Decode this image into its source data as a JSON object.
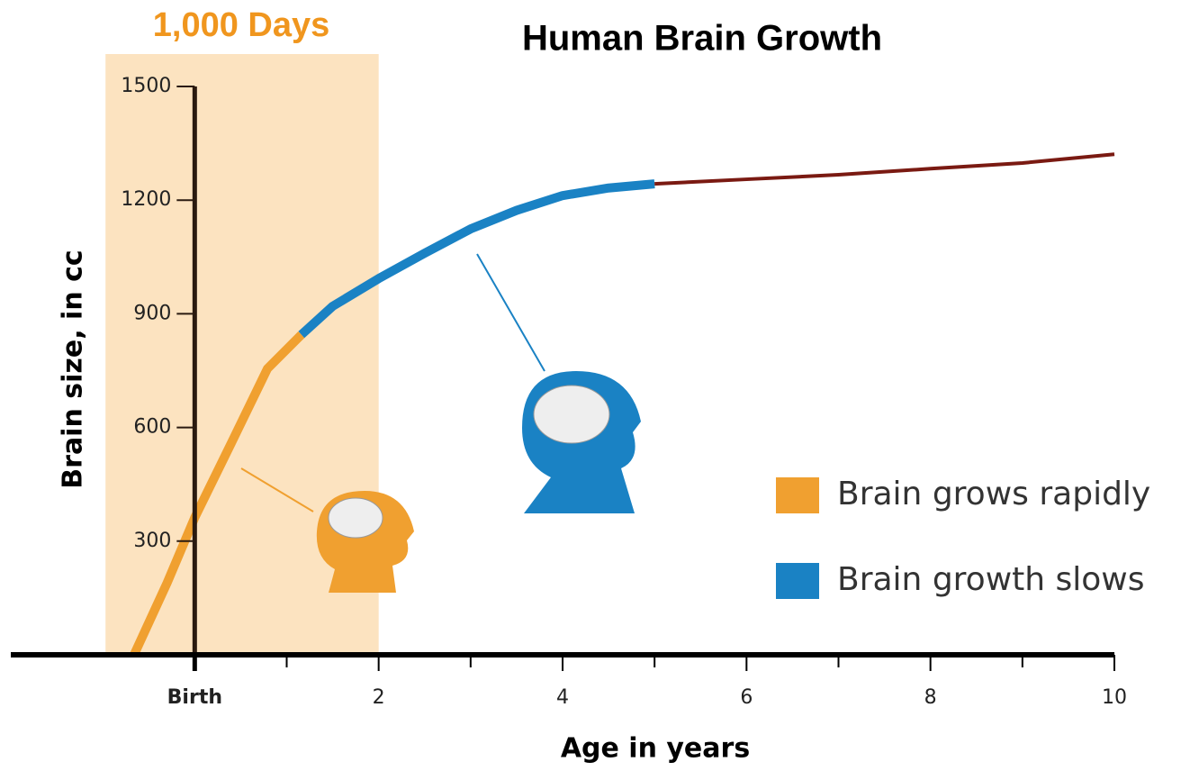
{
  "chart_data": {
    "type": "line",
    "title": "Human Brain Growth",
    "x_label": "Age in years",
    "y_label": "Brain size, in cc",
    "xlim": [
      -2,
      10
    ],
    "ylim": [
      0,
      1500
    ],
    "xticks": [
      {
        "value": 0,
        "label": "Birth"
      },
      2,
      4,
      6,
      8,
      10
    ],
    "xminor_ticks": [
      1,
      3,
      5,
      7,
      9
    ],
    "yticks": [
      300,
      600,
      900,
      1200,
      1500
    ],
    "shaded_span": {
      "x": [
        -0.97,
        2
      ],
      "label": "1,000 Days",
      "color": "#fce3c0",
      "label_color": "#f0961e"
    },
    "legend": "right",
    "series": [
      {
        "name": "Brain grows rapidly",
        "color": "#f0a030",
        "x": [
          -0.66,
          -0.3,
          0,
          0.4,
          0.79,
          1.16
        ],
        "values": [
          0,
          190,
          362,
          560,
          755,
          845
        ]
      },
      {
        "name": "Brain growth slows",
        "color": "#1a82c4",
        "x": [
          1.16,
          1.5,
          2,
          2.5,
          3,
          3.5,
          4,
          4.5,
          5
        ],
        "values": [
          845,
          920,
          993,
          1060,
          1124,
          1173,
          1212,
          1232,
          1243
        ]
      },
      {
        "color": "#7a1a12",
        "x": [
          5,
          6,
          7,
          8,
          9,
          10
        ],
        "values": [
          1243,
          1255,
          1267,
          1283,
          1298,
          1321
        ]
      }
    ]
  }
}
